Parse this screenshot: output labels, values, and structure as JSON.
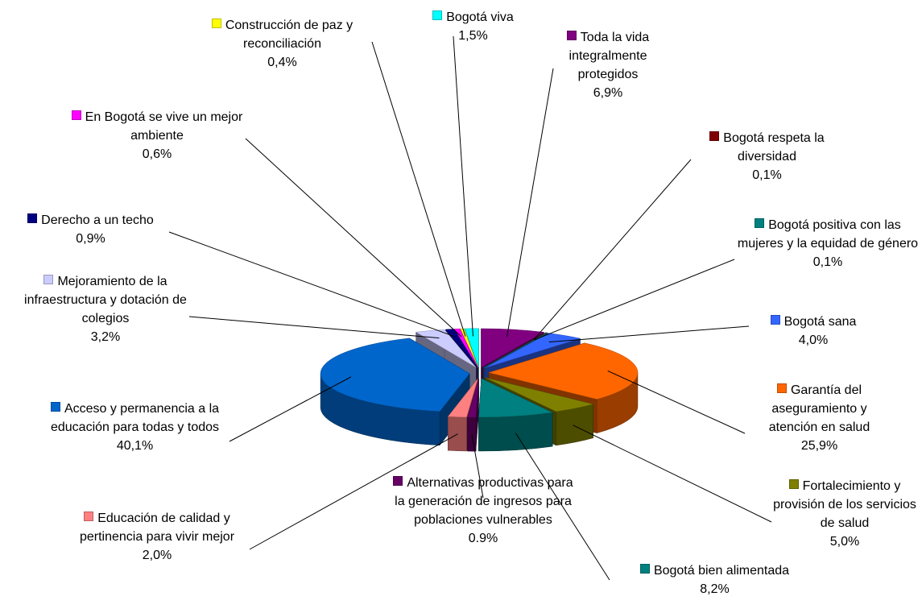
{
  "chart_data": {
    "type": "pie",
    "categories": [
      "Toda la vida integralmente protegidos",
      "Bogotá respeta la diversidad",
      "Bogotá positiva con las mujeres y la equidad de género",
      "Bogotá sana",
      "Garantía del aseguramiento y atención en salud",
      "Fortalecimiento y provisión de los servicios de salud",
      "Bogotá bien alimentada",
      "Alternativas productivas para la generación de ingresos para poblaciones vulnerables",
      "Educación de calidad  y pertinencia para vivir mejor",
      "Acceso y permanencia a la educación para todas y todos",
      "Mejoramiento de la infraestructura y dotación de colegios",
      "Derecho a un techo",
      "En Bogotá se vive un mejor ambiente",
      "Construcción de paz y reconciliación",
      "Bogotá viva"
    ],
    "values": [
      6.9,
      0.1,
      0.1,
      4.0,
      25.9,
      5.0,
      8.2,
      0.9,
      2.0,
      40.1,
      3.2,
      0.9,
      0.6,
      0.4,
      1.5
    ],
    "value_labels": [
      "6,9%",
      "0,1%",
      "0,1%",
      "4,0%",
      "25,9%",
      "5,0%",
      "8,2%",
      "0.9%",
      "2,0%",
      "40,1%",
      "3,2%",
      "0,9%",
      "0,6%",
      "0,4%",
      "1,5%"
    ],
    "colors": [
      "#800080",
      "#800000",
      "#008080",
      "#3366ff",
      "#ff6600",
      "#808000",
      "#008080",
      "#660066",
      "#ff8080",
      "#0066cc",
      "#ccccff",
      "#000080",
      "#ff00ff",
      "#ffff00",
      "#00ffff"
    ]
  }
}
